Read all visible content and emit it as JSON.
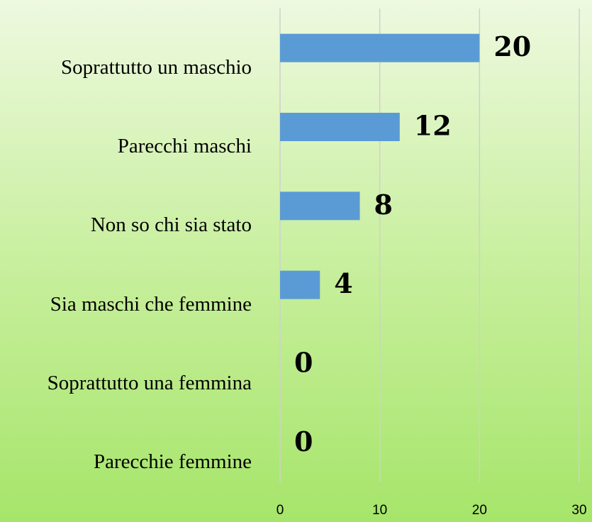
{
  "chart_data": {
    "type": "bar",
    "orientation": "horizontal",
    "categories": [
      "Soprattutto un maschio",
      "Parecchi maschi",
      "Non so chi sia stato",
      "Sia maschi che femmine",
      "Soprattutto una femmina",
      "Parecchie femmine"
    ],
    "values": [
      20,
      12,
      8,
      4,
      0,
      0
    ],
    "color": "#5b9bd5",
    "xlim": [
      0,
      30
    ],
    "xticks": [
      0,
      10,
      20,
      30
    ],
    "grid": true
  }
}
